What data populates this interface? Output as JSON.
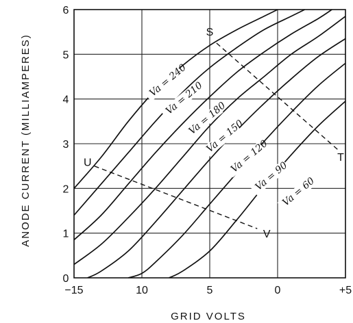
{
  "chart_data": {
    "type": "line",
    "xlabel": "GRID VOLTS",
    "ylabel": "ANODE CURRENT (MILLIAMPERES)",
    "xlim": [
      -15,
      5
    ],
    "ylim": [
      0,
      6
    ],
    "x_ticks": [
      -15,
      -10,
      -5,
      0,
      5
    ],
    "x_tick_labels": [
      "−15",
      "10",
      "5",
      "0",
      "+5"
    ],
    "y_ticks": [
      0,
      1,
      2,
      3,
      4,
      5,
      6
    ],
    "y_tick_labels": [
      "0",
      "1",
      "2",
      "3",
      "4",
      "5",
      "6"
    ],
    "grid": true,
    "series": [
      {
        "name": "Va = 240",
        "label": "Va = 240",
        "label_at": [
          -9.2,
          4.05
        ],
        "label_angle": -40,
        "points": [
          [
            -15,
            2.0
          ],
          [
            -13,
            2.7
          ],
          [
            -11,
            3.5
          ],
          [
            -9,
            4.2
          ],
          [
            -7,
            4.75
          ],
          [
            -5,
            5.2
          ],
          [
            -3,
            5.55
          ],
          [
            -1,
            5.85
          ],
          [
            0,
            6.0
          ]
        ]
      },
      {
        "name": "Va = 210",
        "label": "Va = 210",
        "label_at": [
          -8.0,
          3.65
        ],
        "label_angle": -40,
        "points": [
          [
            -15,
            1.4
          ],
          [
            -13,
            2.1
          ],
          [
            -11,
            2.8
          ],
          [
            -9,
            3.5
          ],
          [
            -7,
            4.15
          ],
          [
            -5,
            4.7
          ],
          [
            -3,
            5.15
          ],
          [
            -1,
            5.55
          ],
          [
            1,
            5.85
          ],
          [
            2,
            6.0
          ]
        ]
      },
      {
        "name": "Va = 180",
        "label": "Va = 180",
        "label_at": [
          -6.3,
          3.2
        ],
        "label_angle": -40,
        "points": [
          [
            -15,
            0.85
          ],
          [
            -13,
            1.4
          ],
          [
            -11,
            2.1
          ],
          [
            -9,
            2.8
          ],
          [
            -7,
            3.45
          ],
          [
            -5,
            4.05
          ],
          [
            -3,
            4.6
          ],
          [
            -1,
            5.05
          ],
          [
            1,
            5.45
          ],
          [
            3,
            5.8
          ],
          [
            4,
            6.0
          ]
        ]
      },
      {
        "name": "Va = 150",
        "label": "Va = 150",
        "label_at": [
          -5.0,
          2.8
        ],
        "label_angle": -40,
        "points": [
          [
            -15,
            0.3
          ],
          [
            -13,
            0.75
          ],
          [
            -11,
            1.35
          ],
          [
            -9,
            2.0
          ],
          [
            -7,
            2.7
          ],
          [
            -5,
            3.4
          ],
          [
            -3,
            4.0
          ],
          [
            -1,
            4.5
          ],
          [
            1,
            5.0
          ],
          [
            3,
            5.4
          ],
          [
            5,
            5.85
          ]
        ]
      },
      {
        "name": "Va = 120",
        "label": "Va = 120",
        "label_at": [
          -3.2,
          2.35
        ],
        "label_angle": -40,
        "points": [
          [
            -14,
            0.0
          ],
          [
            -13,
            0.15
          ],
          [
            -11,
            0.6
          ],
          [
            -9,
            1.25
          ],
          [
            -7,
            1.95
          ],
          [
            -5,
            2.65
          ],
          [
            -3,
            3.3
          ],
          [
            -1,
            3.9
          ],
          [
            1,
            4.45
          ],
          [
            3,
            4.95
          ],
          [
            5,
            5.35
          ]
        ]
      },
      {
        "name": "Va = 90",
        "label": "Va = 90",
        "label_at": [
          -1.4,
          1.95
        ],
        "label_angle": -40,
        "points": [
          [
            -11,
            0.0
          ],
          [
            -10,
            0.1
          ],
          [
            -9,
            0.35
          ],
          [
            -7,
            0.95
          ],
          [
            -5,
            1.65
          ],
          [
            -3,
            2.35
          ],
          [
            -1,
            3.05
          ],
          [
            1,
            3.7
          ],
          [
            3,
            4.3
          ],
          [
            5,
            4.8
          ]
        ]
      },
      {
        "name": "Va = 60",
        "label": "Va = 60",
        "label_at": [
          0.6,
          1.6
        ],
        "label_angle": -40,
        "points": [
          [
            -8,
            0.0
          ],
          [
            -7,
            0.15
          ],
          [
            -5,
            0.6
          ],
          [
            -3,
            1.3
          ],
          [
            -1,
            2.05
          ],
          [
            1,
            2.75
          ],
          [
            3,
            3.4
          ],
          [
            5,
            3.95
          ]
        ]
      }
    ],
    "load_lines": [
      {
        "points": [
          [
            -4.5,
            5.25
          ],
          [
            4.5,
            2.85
          ]
        ],
        "start_label": "S",
        "end_label": "T"
      },
      {
        "points": [
          [
            -13.5,
            2.5
          ],
          [
            -1.5,
            1.1
          ]
        ],
        "start_label": "U",
        "end_label": "V"
      }
    ],
    "point_labels": [
      {
        "text": "S",
        "at": [
          -5.0,
          5.42
        ]
      },
      {
        "text": "T",
        "at": [
          4.65,
          2.62
        ]
      },
      {
        "text": "U",
        "at": [
          -14.0,
          2.5
        ]
      },
      {
        "text": "V",
        "at": [
          -0.8,
          0.9
        ]
      }
    ]
  }
}
